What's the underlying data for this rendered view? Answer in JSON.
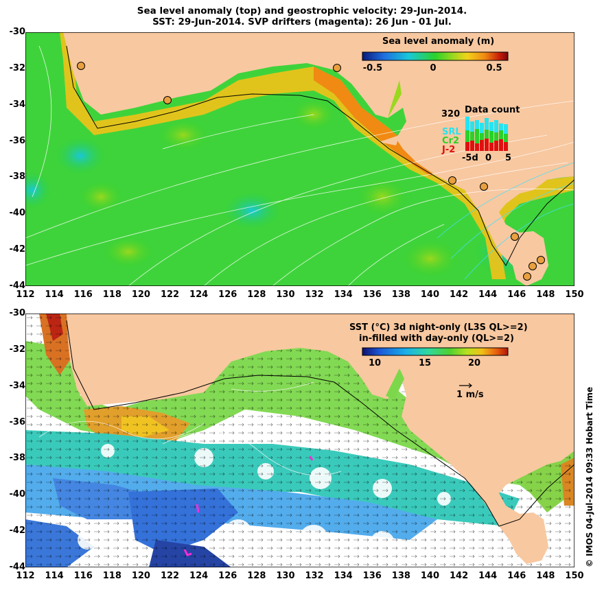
{
  "title_line1": "Sea level anomaly (top) and geostrophic velocity: 29-Jun-2014.",
  "title_line2": "SST: 29-Jun-2014. SVP drifters (magenta): 26 Jun - 01 Jul.",
  "lon_ticks": [
    "112",
    "114",
    "116",
    "118",
    "120",
    "122",
    "124",
    "126",
    "128",
    "130",
    "132",
    "134",
    "136",
    "138",
    "140",
    "142",
    "144",
    "146",
    "148",
    "150"
  ],
  "lat_ticks": [
    "-30",
    "-32",
    "-34",
    "-36",
    "-38",
    "-40",
    "-42",
    "-44"
  ],
  "top_panel": {
    "legend_title": "Sea level anomaly (m)",
    "colorbar_labels": [
      "-0.5",
      "0",
      "0.5"
    ],
    "colorbar_colors": [
      "#0a1a7a",
      "#1f6fe0",
      "#19c8d8",
      "#2bd22b",
      "#9ad81e",
      "#f2d21a",
      "#f08a12",
      "#c81e0a",
      "#7a0808"
    ],
    "data_count": {
      "count_label": "320",
      "title": "Data count",
      "series": [
        {
          "name": "SRL",
          "color": "#27e3f0"
        },
        {
          "name": "Cr2",
          "color": "#2ad12a"
        },
        {
          "name": "J-2",
          "color": "#e01010"
        }
      ],
      "axis_labels": [
        "-5d",
        "0",
        "5"
      ]
    }
  },
  "bottom_panel": {
    "legend_title_line1": "SST (°C) 3d night-only (L3S QL>=2)",
    "legend_title_line2": "in-filled with day-only (QL>=2)",
    "colorbar_labels": [
      "10",
      "15",
      "20"
    ],
    "colorbar_colors": [
      "#101070",
      "#1c5ad8",
      "#1ab0e8",
      "#30d8a0",
      "#50d030",
      "#b8e020",
      "#f0c018",
      "#e86010",
      "#b01808"
    ],
    "velocity_scale_label": "1 m/s"
  },
  "credit": "© IMOS 04-Jul-2014 09:33 Hobart Time",
  "colors": {
    "land": "#f8c8a0",
    "ocean_mid": "#46d63c",
    "sst_cold": "#3a8ae0",
    "drifter": "#ff2ad8"
  }
}
